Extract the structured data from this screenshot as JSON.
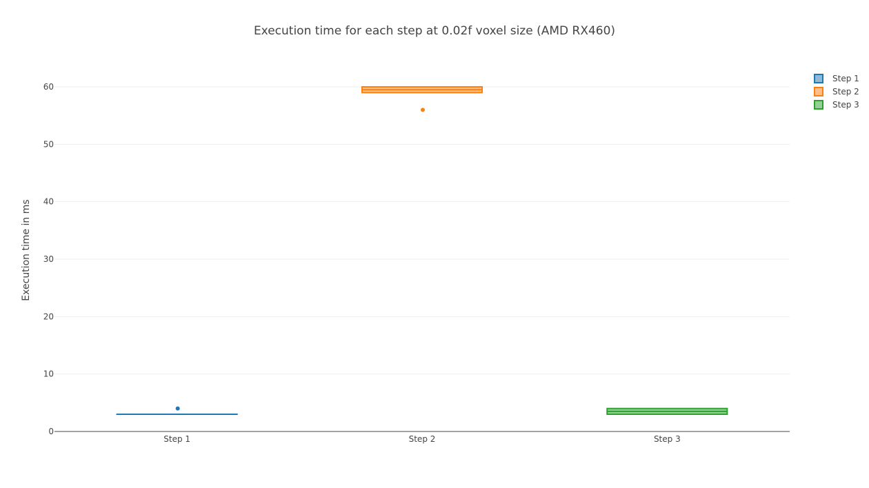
{
  "chart_data": {
    "type": "box",
    "title": "Execution time for each step at 0.02f voxel size (AMD RX460)",
    "xlabel": "",
    "ylabel": "Execution time in ms",
    "categories": [
      "Step 1",
      "Step 2",
      "Step 3"
    ],
    "ylim": [
      0,
      66
    ],
    "yticks": [
      0,
      10,
      20,
      30,
      40,
      50,
      60
    ],
    "grid": true,
    "legend_position": "top-right",
    "series": [
      {
        "name": "Step 1",
        "category": "Step 1",
        "color": "#1f77b4",
        "min": 3,
        "q1": 3,
        "median": 3,
        "q3": 3,
        "max": 3,
        "outliers": [
          4
        ]
      },
      {
        "name": "Step 2",
        "category": "Step 2",
        "color": "#ff7f0e",
        "min": 59,
        "q1": 59,
        "median": 59.5,
        "q3": 60,
        "max": 60,
        "outliers": [
          56
        ]
      },
      {
        "name": "Step 3",
        "category": "Step 3",
        "color": "#2ca02c",
        "min": 3,
        "q1": 3,
        "median": 3.5,
        "q3": 4,
        "max": 4,
        "outliers": []
      }
    ]
  }
}
